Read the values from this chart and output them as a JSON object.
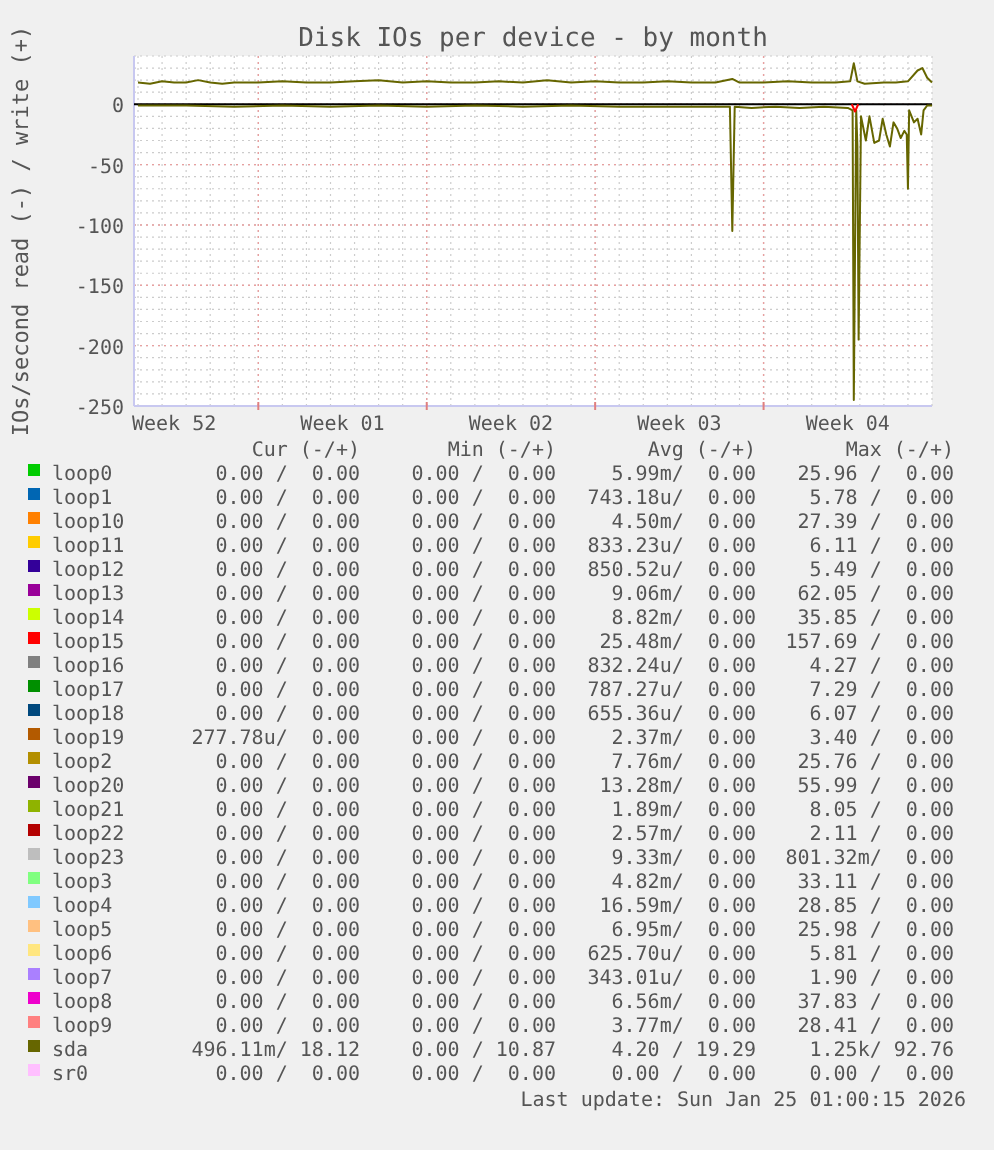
{
  "chart_data": {
    "type": "line",
    "title": "Disk IOs per device - by month",
    "ylabel": "IOs/second read (-) / write (+)",
    "xlim": [
      "2025-12-23T20:00",
      "2026-01-26T00:00"
    ],
    "xticks": [
      {
        "value": "2025-12-25T12:00",
        "label": "Week 52"
      },
      {
        "value": "2025-12-29",
        "label": null
      },
      {
        "value": "2026-01-01T12:00",
        "label": "Week 01"
      },
      {
        "value": "2026-01-05",
        "label": null
      },
      {
        "value": "2026-01-08T12:00",
        "label": "Week 02"
      },
      {
        "value": "2026-01-12",
        "label": null
      },
      {
        "value": "2026-01-15T12:00",
        "label": "Week 03"
      },
      {
        "value": "2026-01-19",
        "label": null
      },
      {
        "value": "2026-01-22T12:00",
        "label": "Week 04"
      }
    ],
    "ylim": [
      -250,
      40
    ],
    "yticks": [
      -250,
      -200,
      -150,
      -100,
      -50,
      0
    ],
    "grid": true,
    "legend": "bottom",
    "ref_lines": [
      {
        "axis": "y",
        "value": 0,
        "color": "#000000"
      }
    ],
    "series": [
      {
        "name": "loop0",
        "color": "#00cc00"
      },
      {
        "name": "loop1",
        "color": "#0066b3"
      },
      {
        "name": "loop10",
        "color": "#ff8000"
      },
      {
        "name": "loop11",
        "color": "#ffcc00"
      },
      {
        "name": "loop12",
        "color": "#330099"
      },
      {
        "name": "loop13",
        "color": "#990099"
      },
      {
        "name": "loop14",
        "color": "#ccff00"
      },
      {
        "name": "loop15",
        "color": "#ff0000",
        "x": [
          "2026-01-22T16:00",
          "2026-01-22T19:12",
          "2026-01-22T22:24"
        ],
        "values": [
          0,
          -6,
          0
        ]
      },
      {
        "name": "loop16",
        "color": "#808080"
      },
      {
        "name": "loop17",
        "color": "#008f00"
      },
      {
        "name": "loop18",
        "color": "#00487d"
      },
      {
        "name": "loop19",
        "color": "#b35a00"
      },
      {
        "name": "loop2",
        "color": "#b38f00"
      },
      {
        "name": "loop20",
        "color": "#6b006b"
      },
      {
        "name": "loop21",
        "color": "#8fb300"
      },
      {
        "name": "loop22",
        "color": "#b30000"
      },
      {
        "name": "loop23",
        "color": "#bebebe"
      },
      {
        "name": "loop3",
        "color": "#80ff80"
      },
      {
        "name": "loop4",
        "color": "#80c9ff"
      },
      {
        "name": "loop5",
        "color": "#ffc080"
      },
      {
        "name": "loop6",
        "color": "#ffe680"
      },
      {
        "name": "loop7",
        "color": "#aa80ff"
      },
      {
        "name": "loop8",
        "color": "#ee00cc"
      },
      {
        "name": "loop9",
        "color": "#ff8080"
      },
      {
        "color": "#666600",
        "x": [
          "2025-12-24",
          "2025-12-26",
          "2025-12-28",
          "2025-12-30",
          "2026-01-01",
          "2026-01-03",
          "2026-01-05",
          "2026-01-07",
          "2026-01-09",
          "2026-01-11",
          "2026-01-13",
          "2026-01-15",
          "2026-01-17",
          "2026-01-17T14:24",
          "2026-01-17T16:48",
          "2026-01-17T19:12",
          "2026-01-18T12:00",
          "2026-01-19T12:00",
          "2026-01-20T12:00",
          "2026-01-21T12:00",
          "2026-01-22T12:00",
          "2026-01-22T16:48",
          "2026-01-22T18:00",
          "2026-01-22T20:24",
          "2026-01-22T21:36",
          "2026-01-22T22:48",
          "2026-01-23T01:12",
          "2026-01-23T06:00",
          "2026-01-23T09:36",
          "2026-01-23T14:24",
          "2026-01-23T19:12",
          "2026-01-23T22:48",
          "2026-01-24T02:24",
          "2026-01-24T06:00",
          "2026-01-24T09:36",
          "2026-01-24T13:12",
          "2026-01-24T16:48",
          "2026-01-24T20:24",
          "2026-01-24T22:48",
          "2026-01-25T00:00",
          "2026-01-25T01:12",
          "2026-01-25T06:00",
          "2026-01-25T09:36",
          "2026-01-25T13:12",
          "2026-01-25T15:36",
          "2026-01-25T19:12",
          "2026-01-26T00:00"
        ],
        "values": [
          -1,
          -1,
          -2,
          -1,
          -2,
          -1,
          -2,
          -1,
          -2,
          -1,
          -2,
          -2,
          -2,
          -2,
          -105,
          -2,
          -3,
          -2,
          -3,
          -2,
          -3,
          -5,
          -245,
          -5,
          -35,
          -195,
          -10,
          -30,
          -10,
          -32,
          -30,
          -12,
          -25,
          -35,
          -15,
          -20,
          -28,
          -22,
          -25,
          -70,
          -5,
          -15,
          -12,
          -25,
          -5,
          -1,
          -1
        ]
      },
      {
        "name": "sda",
        "color": "#666600",
        "x": [
          "2025-12-24",
          "2025-12-24T12:00",
          "2025-12-25",
          "2025-12-25T12:00",
          "2025-12-26",
          "2025-12-26T12:00",
          "2025-12-27",
          "2025-12-27T12:00",
          "2025-12-28",
          "2025-12-29",
          "2025-12-30",
          "2025-12-31",
          "2026-01-01",
          "2026-01-02",
          "2026-01-03",
          "2026-01-04",
          "2026-01-05",
          "2026-01-06",
          "2026-01-07",
          "2026-01-08",
          "2026-01-09",
          "2026-01-10",
          "2026-01-11",
          "2026-01-12",
          "2026-01-13",
          "2026-01-14",
          "2026-01-15",
          "2026-01-16",
          "2026-01-17",
          "2026-01-17T16:48",
          "2026-01-18",
          "2026-01-19",
          "2026-01-20",
          "2026-01-21",
          "2026-01-22",
          "2026-01-22T14:24",
          "2026-01-22T18:00",
          "2026-01-22T21:36",
          "2026-01-23T04:48",
          "2026-01-24",
          "2026-01-24T12:00",
          "2026-01-25",
          "2026-01-25T09:36",
          "2026-01-25T14:24",
          "2026-01-25T19:12",
          "2026-01-26T00:00"
        ],
        "values": [
          18,
          17,
          19,
          18,
          18,
          20,
          18,
          17,
          18,
          18,
          19,
          18,
          18,
          19,
          20,
          18,
          19,
          18,
          18,
          19,
          18,
          20,
          18,
          19,
          18,
          18,
          19,
          18,
          18,
          21,
          18,
          18,
          19,
          18,
          18,
          19,
          34,
          19,
          17,
          18,
          18,
          19,
          28,
          30,
          22,
          18
        ]
      },
      {
        "name": "sr0",
        "color": "#ffbfff"
      }
    ],
    "annotations": [
      "Cur (-/+)",
      "Min (-/+)",
      "Avg (-/+)",
      "Max (-/+)",
      "0.00 /  0.00",
      "0.00 /  0.00",
      "5.99m/  0.00",
      "25.96 /  0.00",
      "0.00 /  0.00",
      "0.00 /  0.00",
      "743.18u/  0.00",
      "5.78 /  0.00",
      "0.00 /  0.00",
      "0.00 /  0.00",
      "4.50m/  0.00",
      "27.39 /  0.00",
      "0.00 /  0.00",
      "0.00 /  0.00",
      "833.23u/  0.00",
      "6.11 /  0.00",
      "0.00 /  0.00",
      "0.00 /  0.00",
      "850.52u/  0.00",
      "5.49 /  0.00",
      "0.00 /  0.00",
      "0.00 /  0.00",
      "9.06m/  0.00",
      "62.05 /  0.00",
      "0.00 /  0.00",
      "0.00 /  0.00",
      "8.82m/  0.00",
      "35.85 /  0.00",
      "0.00 /  0.00",
      "0.00 /  0.00",
      "25.48m/  0.00",
      "157.69 /  0.00",
      "0.00 /  0.00",
      "0.00 /  0.00",
      "832.24u/  0.00",
      "4.27 /  0.00",
      "0.00 /  0.00",
      "0.00 /  0.00",
      "787.27u/  0.00",
      "7.29 /  0.00",
      "0.00 /  0.00",
      "0.00 /  0.00",
      "655.36u/  0.00",
      "6.07 /  0.00",
      "277.78u/  0.00",
      "0.00 /  0.00",
      "2.37m/  0.00",
      "3.40 /  0.00",
      "0.00 /  0.00",
      "0.00 /  0.00",
      "7.76m/  0.00",
      "25.76 /  0.00",
      "0.00 /  0.00",
      "0.00 /  0.00",
      "13.28m/  0.00",
      "55.99 /  0.00",
      "0.00 /  0.00",
      "0.00 /  0.00",
      "1.89m/  0.00",
      "8.05 /  0.00",
      "0.00 /  0.00",
      "0.00 /  0.00",
      "2.57m/  0.00",
      "2.11 /  0.00",
      "0.00 /  0.00",
      "0.00 /  0.00",
      "9.33m/  0.00",
      "801.32m/  0.00",
      "0.00 /  0.00",
      "0.00 /  0.00",
      "4.82m/  0.00",
      "33.11 /  0.00",
      "0.00 /  0.00",
      "0.00 /  0.00",
      "16.59m/  0.00",
      "28.85 /  0.00",
      "0.00 /  0.00",
      "0.00 /  0.00",
      "6.95m/  0.00",
      "25.98 /  0.00",
      "0.00 /  0.00",
      "0.00 /  0.00",
      "625.70u/  0.00",
      "5.81 /  0.00",
      "0.00 /  0.00",
      "0.00 /  0.00",
      "343.01u/  0.00",
      "1.90 /  0.00",
      "0.00 /  0.00",
      "0.00 /  0.00",
      "6.56m/  0.00",
      "37.83 /  0.00",
      "0.00 /  0.00",
      "0.00 /  0.00",
      "3.77m/  0.00",
      "28.41 /  0.00",
      "496.11m/ 18.12",
      "0.00 / 10.87",
      "4.20 / 19.29",
      "1.25k/ 92.76",
      "0.00 /  0.00",
      "0.00 /  0.00",
      "0.00 /  0.00",
      "0.00 /  0.00",
      "Last update: Sun Jan 25 01:00:15 2026"
    ]
  }
}
